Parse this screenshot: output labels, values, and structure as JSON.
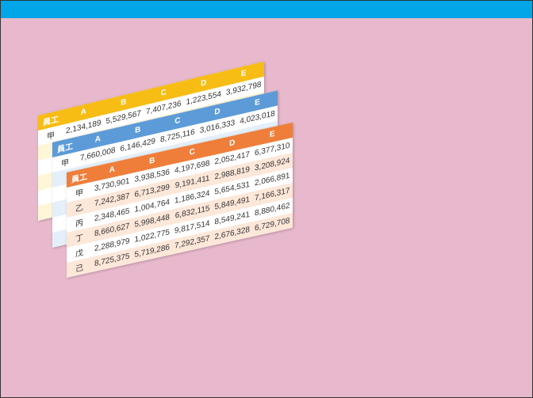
{
  "colors": {
    "topbar": "#00a6e8",
    "background": "#e8b8cc"
  },
  "sheets": [
    {
      "theme": "yellow",
      "header": [
        "員工",
        "A",
        "B",
        "C",
        "D",
        "E"
      ],
      "rows": [
        [
          "甲",
          "2,134,189",
          "5,529,567",
          "7,407,236",
          "1,223,554",
          "3,932,798"
        ]
      ]
    },
    {
      "theme": "blue",
      "header": [
        "員工",
        "A",
        "B",
        "C",
        "D",
        "E"
      ],
      "rows": [
        [
          "甲",
          "7,660,008",
          "6,146,429",
          "8,725,116",
          "3,016,333",
          "4,023,018"
        ]
      ]
    },
    {
      "theme": "orange",
      "header": [
        "員工",
        "A",
        "B",
        "C",
        "D",
        "E"
      ],
      "rows": [
        [
          "甲",
          "3,730,901",
          "3,938,536",
          "4,197,698",
          "2,052,417",
          "6,377,310"
        ],
        [
          "乙",
          "7,242,387",
          "6,713,299",
          "9,191,411",
          "2,988,819",
          "3,208,924"
        ],
        [
          "丙",
          "2,348,465",
          "1,004,764",
          "1,186,324",
          "5,654,531",
          "2,066,891"
        ],
        [
          "丁",
          "8,660,627",
          "5,998,448",
          "6,832,115",
          "5,849,491",
          "7,166,317"
        ],
        [
          "戊",
          "2,288,979",
          "1,022,775",
          "9,817,514",
          "8,549,241",
          "8,880,462"
        ],
        [
          "己",
          "8,725,375",
          "5,719,286",
          "7,292,357",
          "2,676,328",
          "6,729,708"
        ]
      ]
    }
  ]
}
